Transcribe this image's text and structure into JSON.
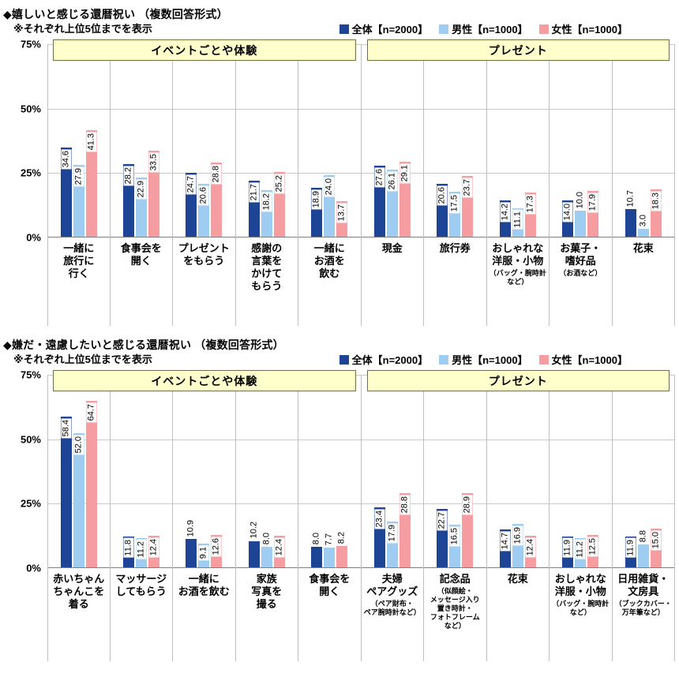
{
  "colors": {
    "overall": "#1e4496",
    "male": "#9ecdf1",
    "female": "#f59da0",
    "header_bg": "#ffffcc",
    "header_border": "#70703a",
    "grid": "#c9c9c9",
    "axis": "#7f7f7f",
    "separator": "#bfbfbf"
  },
  "legend": {
    "items": [
      {
        "key": "overall",
        "label": "全体【n=2000】"
      },
      {
        "key": "male",
        "label": "男性【n=1000】"
      },
      {
        "key": "female",
        "label": "女性【n=1000】"
      }
    ]
  },
  "yaxis": {
    "max": 75,
    "ticks": [
      {
        "label": "75%",
        "value": 75
      },
      {
        "label": "50%",
        "value": 50
      },
      {
        "label": "25%",
        "value": 25
      },
      {
        "label": "0%",
        "value": 0
      }
    ]
  },
  "chart_data": [
    {
      "type": "bar",
      "title": "◆嬉しいと感じる還暦祝い （複数回答形式）",
      "note": "※それぞれ上位5位までを表示",
      "ylim": [
        0,
        75
      ],
      "legend_position": "top-right",
      "grid": true,
      "groups": [
        {
          "label": "イベントごとや体験",
          "span": 5
        },
        {
          "label": "プレゼント",
          "span": 5
        }
      ],
      "categories": [
        {
          "label": "一緒に\n旅行に\n行く",
          "sub": ""
        },
        {
          "label": "食事会を\n開く",
          "sub": ""
        },
        {
          "label": "プレゼント\nをもらう",
          "sub": ""
        },
        {
          "label": "感謝の\n言葉を\nかけて\nもらう",
          "sub": ""
        },
        {
          "label": "一緒に\nお酒を\n飲む",
          "sub": ""
        },
        {
          "label": "現金",
          "sub": ""
        },
        {
          "label": "旅行券",
          "sub": ""
        },
        {
          "label": "おしゃれな\n洋服・小物",
          "sub": "（バッグ・腕時計\nなど）"
        },
        {
          "label": "お菓子・\n嗜好品",
          "sub": "（お酒など）"
        },
        {
          "label": "花束",
          "sub": ""
        }
      ],
      "series": [
        {
          "name": "全体【n=2000】",
          "key": "overall",
          "values": [
            34.6,
            28.2,
            24.7,
            21.7,
            18.9,
            27.6,
            20.6,
            14.2,
            14.0,
            10.7
          ]
        },
        {
          "name": "男性【n=1000】",
          "key": "male",
          "values": [
            27.9,
            22.9,
            20.6,
            18.2,
            24.0,
            26.1,
            17.5,
            11.1,
            10.0,
            3.0
          ]
        },
        {
          "name": "女性【n=1000】",
          "key": "female",
          "values": [
            41.3,
            33.5,
            28.8,
            25.2,
            13.7,
            29.1,
            23.7,
            17.3,
            17.9,
            18.3
          ]
        }
      ]
    },
    {
      "type": "bar",
      "title": "◆嫌だ・遠慮したいと感じる還暦祝い （複数回答形式）",
      "note": "※それぞれ上位5位までを表示",
      "ylim": [
        0,
        75
      ],
      "legend_position": "top-right",
      "grid": true,
      "groups": [
        {
          "label": "イベントごとや体験",
          "span": 5
        },
        {
          "label": "プレゼント",
          "span": 5
        }
      ],
      "categories": [
        {
          "label": "赤いちゃん\nちゃんこを\n着る",
          "sub": ""
        },
        {
          "label": "マッサージ\nしてもらう",
          "sub": ""
        },
        {
          "label": "一緒に\nお酒を飲む",
          "sub": ""
        },
        {
          "label": "家族\n写真を\n撮る",
          "sub": ""
        },
        {
          "label": "食事会を\n開く",
          "sub": ""
        },
        {
          "label": "夫婦\nペアグッズ",
          "sub": "（ペア財布・\nペア腕時計など）"
        },
        {
          "label": "記念品",
          "sub": "（似顔絵・\nメッセージ入り\n置き時計・\nフォトフレーム\nなど）"
        },
        {
          "label": "花束",
          "sub": ""
        },
        {
          "label": "おしゃれな\n洋服・小物",
          "sub": "（バッグ・腕時計\nなど）"
        },
        {
          "label": "日用雑貨・\n文房具",
          "sub": "（ブックカバー・\n万年筆など）"
        }
      ],
      "series": [
        {
          "name": "全体【n=2000】",
          "key": "overall",
          "values": [
            58.4,
            11.8,
            10.9,
            10.2,
            8.0,
            23.4,
            22.7,
            14.7,
            11.9,
            11.9
          ]
        },
        {
          "name": "男性【n=1000】",
          "key": "male",
          "values": [
            52.0,
            11.2,
            9.1,
            8.0,
            7.7,
            17.9,
            16.5,
            16.9,
            11.2,
            8.8
          ]
        },
        {
          "name": "女性【n=1000】",
          "key": "female",
          "values": [
            64.7,
            12.4,
            12.6,
            12.4,
            8.2,
            28.8,
            28.9,
            12.4,
            12.5,
            15.0
          ]
        }
      ]
    }
  ]
}
